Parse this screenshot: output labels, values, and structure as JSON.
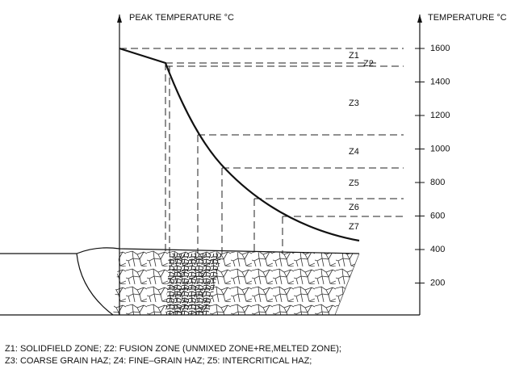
{
  "left_axis": {
    "label": "PEAK TEMPERATURE °C"
  },
  "right_axis": {
    "label": "TEMPERATURE °C",
    "ticks": [
      "1600",
      "1400",
      "1200",
      "1000",
      "800",
      "600",
      "400",
      "200"
    ]
  },
  "zones": [
    "Z1",
    "Z2",
    "Z3",
    "Z4",
    "Z5",
    "Z6",
    "Z7"
  ],
  "legend": [
    "Z1: SOLIDFIELD ZONE; Z2: FUSION ZONE (UNMIXED ZONE+RE,MELTED ZONE);",
    "Z3: COARSE GRAIN  HAZ; Z4: FINE–GRAIN HAZ; Z5: INTERCRITICAL HAZ;"
  ]
}
